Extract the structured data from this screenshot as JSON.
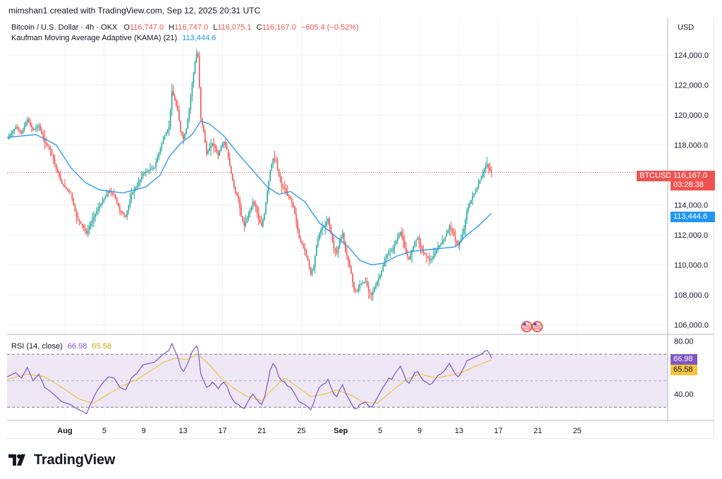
{
  "header": {
    "attribution": "mimshan1 created with TradingView.com, Sep 12, 2025 20:31 UTC"
  },
  "legend": {
    "symbol": "Bitcoin / U.S. Dollar · 4h · OKX",
    "ohlc": {
      "o_label": "O",
      "o": "116,747.0",
      "h_label": "H",
      "h": "116,747.0",
      "l_label": "L",
      "l": "116,075.1",
      "c_label": "C",
      "c": "116,167.0",
      "change": "−605.4 (−0.52%)"
    },
    "kama_label": "Kaufman Moving Average Adaptive (KAMA) (21)",
    "kama_value": "113,444.6",
    "rsi_label": "RSI (14, close)",
    "rsi_value": "66.98",
    "rsi_ma_value": "65.58"
  },
  "price_axis": {
    "currency": "USD"
  },
  "tags": {
    "symbol": "BTCUSD",
    "price": "116,167.0",
    "countdown": "03:28:38",
    "kama": "113,444.6",
    "rsi": "66.98",
    "rsi_ma": "65.58"
  },
  "brand": {
    "name": "TradingView"
  },
  "colors": {
    "up": "#26a69a",
    "down": "#ef5350",
    "kama": "#2196f3",
    "rsi": "#7e57c2",
    "rsi_ma": "#f5c542",
    "rsi_band": "#ede7f6"
  },
  "chart_data": {
    "type": "candlestick",
    "title": "Bitcoin / U.S. Dollar · 4h · OKX",
    "x_tick_labels": [
      "Aug",
      "5",
      "9",
      "13",
      "17",
      "21",
      "25",
      "Sep",
      "5",
      "9",
      "13",
      "17",
      "21",
      "25"
    ],
    "y_tick_labels": [
      "124,000.0",
      "122,000.0",
      "120,000.0",
      "118,000.0",
      "116,000.0",
      "114,000.0",
      "112,000.0",
      "110,000.0",
      "108,000.0",
      "106,000.0"
    ],
    "y_ticks": [
      124000,
      122000,
      120000,
      118000,
      116000,
      114000,
      112000,
      110000,
      108000,
      106000
    ],
    "ylim": [
      105500,
      126500
    ],
    "last_price": 116167.0,
    "price_path": [
      [
        0,
        118400
      ],
      [
        6,
        119200
      ],
      [
        10,
        118800
      ],
      [
        14,
        119700
      ],
      [
        18,
        119000
      ],
      [
        22,
        119300
      ],
      [
        26,
        118200
      ],
      [
        30,
        117700
      ],
      [
        34,
        116400
      ],
      [
        38,
        115400
      ],
      [
        44,
        114800
      ],
      [
        48,
        113200
      ],
      [
        52,
        112600
      ],
      [
        55,
        112100
      ],
      [
        58,
        112800
      ],
      [
        62,
        113600
      ],
      [
        66,
        114200
      ],
      [
        70,
        114900
      ],
      [
        74,
        114700
      ],
      [
        78,
        113600
      ],
      [
        82,
        113200
      ],
      [
        86,
        114700
      ],
      [
        90,
        115300
      ],
      [
        94,
        116100
      ],
      [
        98,
        116300
      ],
      [
        102,
        116500
      ],
      [
        106,
        117800
      ],
      [
        108,
        118400
      ],
      [
        112,
        119200
      ],
      [
        114,
        121600
      ],
      [
        118,
        120300
      ],
      [
        120,
        118900
      ],
      [
        122,
        118400
      ],
      [
        124,
        119100
      ],
      [
        126,
        120400
      ],
      [
        128,
        122100
      ],
      [
        130,
        123500
      ],
      [
        131,
        124100
      ],
      [
        132,
        123900
      ],
      [
        134,
        119800
      ],
      [
        136,
        118900
      ],
      [
        138,
        117400
      ],
      [
        140,
        117800
      ],
      [
        142,
        118100
      ],
      [
        144,
        117800
      ],
      [
        146,
        117300
      ],
      [
        148,
        117900
      ],
      [
        150,
        118200
      ],
      [
        152,
        117700
      ],
      [
        154,
        116600
      ],
      [
        156,
        115600
      ],
      [
        158,
        114800
      ],
      [
        160,
        114400
      ],
      [
        162,
        113200
      ],
      [
        164,
        112600
      ],
      [
        166,
        113100
      ],
      [
        168,
        113700
      ],
      [
        170,
        114200
      ],
      [
        172,
        113900
      ],
      [
        174,
        113000
      ],
      [
        176,
        112600
      ],
      [
        178,
        113400
      ],
      [
        180,
        114900
      ],
      [
        182,
        116300
      ],
      [
        184,
        117100
      ],
      [
        186,
        116900
      ],
      [
        188,
        115900
      ],
      [
        190,
        115200
      ],
      [
        192,
        115100
      ],
      [
        194,
        114600
      ],
      [
        196,
        114400
      ],
      [
        198,
        113900
      ],
      [
        200,
        112900
      ],
      [
        202,
        111800
      ],
      [
        204,
        111400
      ],
      [
        206,
        110900
      ],
      [
        208,
        110300
      ],
      [
        210,
        109400
      ],
      [
        212,
        109900
      ],
      [
        214,
        111300
      ],
      [
        216,
        112100
      ],
      [
        218,
        112500
      ],
      [
        220,
        112600
      ],
      [
        222,
        113100
      ],
      [
        224,
        112100
      ],
      [
        226,
        111100
      ],
      [
        228,
        110800
      ],
      [
        230,
        111600
      ],
      [
        232,
        112100
      ],
      [
        234,
        110900
      ],
      [
        236,
        110300
      ],
      [
        238,
        109400
      ],
      [
        240,
        108300
      ],
      [
        242,
        108200
      ],
      [
        244,
        108700
      ],
      [
        246,
        108800
      ],
      [
        248,
        108900
      ],
      [
        250,
        108300
      ],
      [
        252,
        108000
      ],
      [
        254,
        108400
      ],
      [
        256,
        108900
      ],
      [
        258,
        109300
      ],
      [
        260,
        109900
      ],
      [
        262,
        110400
      ],
      [
        264,
        110900
      ],
      [
        266,
        110900
      ],
      [
        268,
        111400
      ],
      [
        270,
        111800
      ],
      [
        272,
        112200
      ],
      [
        274,
        111600
      ],
      [
        276,
        110700
      ],
      [
        278,
        110400
      ],
      [
        280,
        110900
      ],
      [
        282,
        111600
      ],
      [
        284,
        111800
      ],
      [
        286,
        111200
      ],
      [
        288,
        110800
      ],
      [
        290,
        110600
      ],
      [
        292,
        110300
      ],
      [
        294,
        110400
      ],
      [
        296,
        110800
      ],
      [
        298,
        111200
      ],
      [
        300,
        111400
      ],
      [
        302,
        111700
      ],
      [
        304,
        112100
      ],
      [
        306,
        112600
      ],
      [
        308,
        112200
      ],
      [
        310,
        111600
      ],
      [
        312,
        111300
      ],
      [
        314,
        111700
      ],
      [
        316,
        112400
      ],
      [
        318,
        113600
      ],
      [
        320,
        114100
      ],
      [
        322,
        114600
      ],
      [
        324,
        114900
      ],
      [
        326,
        115400
      ],
      [
        328,
        115900
      ],
      [
        330,
        116400
      ],
      [
        332,
        116700
      ],
      [
        334,
        116300
      ],
      [
        335,
        116167
      ]
    ],
    "kama_path": [
      [
        0,
        118500
      ],
      [
        20,
        118700
      ],
      [
        34,
        118000
      ],
      [
        44,
        116500
      ],
      [
        54,
        115500
      ],
      [
        64,
        115000
      ],
      [
        80,
        114800
      ],
      [
        96,
        115200
      ],
      [
        106,
        116000
      ],
      [
        112,
        117200
      ],
      [
        120,
        118100
      ],
      [
        128,
        118700
      ],
      [
        134,
        119600
      ],
      [
        140,
        119400
      ],
      [
        150,
        118600
      ],
      [
        160,
        117400
      ],
      [
        170,
        116300
      ],
      [
        180,
        115200
      ],
      [
        188,
        114700
      ],
      [
        196,
        114900
      ],
      [
        206,
        114200
      ],
      [
        216,
        112800
      ],
      [
        226,
        112000
      ],
      [
        236,
        111200
      ],
      [
        244,
        110300
      ],
      [
        252,
        110000
      ],
      [
        260,
        110100
      ],
      [
        270,
        110600
      ],
      [
        280,
        110900
      ],
      [
        290,
        111000
      ],
      [
        300,
        111100
      ],
      [
        310,
        111200
      ],
      [
        318,
        112000
      ],
      [
        326,
        112600
      ],
      [
        335,
        113444.6
      ]
    ],
    "rsi": {
      "ylim": [
        20,
        85
      ],
      "y_tick_labels": [
        "80.00",
        "40.00"
      ],
      "y_ticks": [
        80,
        40
      ],
      "upper_band": 70,
      "lower_band": 30,
      "mid_line": 50,
      "rsi_path": [
        [
          0,
          53
        ],
        [
          6,
          56
        ],
        [
          10,
          52
        ],
        [
          14,
          60
        ],
        [
          18,
          50
        ],
        [
          22,
          55
        ],
        [
          26,
          45
        ],
        [
          30,
          42
        ],
        [
          34,
          38
        ],
        [
          38,
          34
        ],
        [
          44,
          32
        ],
        [
          48,
          29
        ],
        [
          52,
          27
        ],
        [
          55,
          25
        ],
        [
          58,
          33
        ],
        [
          62,
          42
        ],
        [
          66,
          48
        ],
        [
          70,
          53
        ],
        [
          74,
          52
        ],
        [
          78,
          45
        ],
        [
          82,
          43
        ],
        [
          86,
          52
        ],
        [
          90,
          56
        ],
        [
          94,
          62
        ],
        [
          98,
          63
        ],
        [
          102,
          64
        ],
        [
          106,
          68
        ],
        [
          108,
          70
        ],
        [
          112,
          73
        ],
        [
          114,
          78
        ],
        [
          118,
          68
        ],
        [
          120,
          60
        ],
        [
          122,
          57
        ],
        [
          124,
          61
        ],
        [
          126,
          66
        ],
        [
          128,
          72
        ],
        [
          130,
          75
        ],
        [
          131,
          76
        ],
        [
          132,
          74
        ],
        [
          134,
          55
        ],
        [
          136,
          50
        ],
        [
          138,
          45
        ],
        [
          140,
          46
        ],
        [
          142,
          49
        ],
        [
          144,
          47
        ],
        [
          146,
          44
        ],
        [
          148,
          47
        ],
        [
          150,
          49
        ],
        [
          152,
          46
        ],
        [
          154,
          40
        ],
        [
          156,
          36
        ],
        [
          158,
          33
        ],
        [
          160,
          32
        ],
        [
          162,
          30
        ],
        [
          164,
          29
        ],
        [
          166,
          33
        ],
        [
          168,
          37
        ],
        [
          170,
          40
        ],
        [
          172,
          37
        ],
        [
          174,
          34
        ],
        [
          176,
          32
        ],
        [
          178,
          37
        ],
        [
          180,
          47
        ],
        [
          182,
          58
        ],
        [
          184,
          63
        ],
        [
          186,
          60
        ],
        [
          188,
          53
        ],
        [
          190,
          50
        ],
        [
          192,
          49
        ],
        [
          194,
          46
        ],
        [
          196,
          45
        ],
        [
          198,
          42
        ],
        [
          200,
          38
        ],
        [
          202,
          34
        ],
        [
          204,
          33
        ],
        [
          206,
          32
        ],
        [
          208,
          30
        ],
        [
          210,
          28
        ],
        [
          212,
          33
        ],
        [
          214,
          40
        ],
        [
          216,
          45
        ],
        [
          218,
          47
        ],
        [
          220,
          48
        ],
        [
          222,
          51
        ],
        [
          224,
          45
        ],
        [
          226,
          40
        ],
        [
          228,
          38
        ],
        [
          230,
          43
        ],
        [
          232,
          47
        ],
        [
          234,
          41
        ],
        [
          236,
          37
        ],
        [
          238,
          33
        ],
        [
          240,
          29
        ],
        [
          242,
          29
        ],
        [
          244,
          32
        ],
        [
          246,
          33
        ],
        [
          248,
          34
        ],
        [
          250,
          31
        ],
        [
          252,
          30
        ],
        [
          254,
          33
        ],
        [
          256,
          37
        ],
        [
          258,
          41
        ],
        [
          260,
          45
        ],
        [
          262,
          48
        ],
        [
          264,
          52
        ],
        [
          266,
          51
        ],
        [
          268,
          55
        ],
        [
          270,
          58
        ],
        [
          272,
          61
        ],
        [
          274,
          56
        ],
        [
          276,
          50
        ],
        [
          278,
          48
        ],
        [
          280,
          52
        ],
        [
          282,
          56
        ],
        [
          284,
          57
        ],
        [
          286,
          53
        ],
        [
          288,
          50
        ],
        [
          290,
          49
        ],
        [
          292,
          47
        ],
        [
          294,
          48
        ],
        [
          296,
          51
        ],
        [
          298,
          54
        ],
        [
          300,
          55
        ],
        [
          302,
          57
        ],
        [
          304,
          60
        ],
        [
          306,
          63
        ],
        [
          308,
          59
        ],
        [
          310,
          55
        ],
        [
          312,
          53
        ],
        [
          314,
          56
        ],
        [
          316,
          60
        ],
        [
          318,
          65
        ],
        [
          320,
          66
        ],
        [
          322,
          67
        ],
        [
          324,
          68
        ],
        [
          326,
          69
        ],
        [
          328,
          70
        ],
        [
          330,
          72
        ],
        [
          332,
          73
        ],
        [
          334,
          70
        ],
        [
          335,
          66.98
        ]
      ],
      "rsi_ma_path": [
        [
          0,
          51
        ],
        [
          14,
          55
        ],
        [
          26,
          53
        ],
        [
          38,
          45
        ],
        [
          50,
          36
        ],
        [
          60,
          33
        ],
        [
          70,
          40
        ],
        [
          80,
          46
        ],
        [
          90,
          51
        ],
        [
          100,
          58
        ],
        [
          108,
          64
        ],
        [
          116,
          67
        ],
        [
          124,
          66
        ],
        [
          132,
          70
        ],
        [
          140,
          62
        ],
        [
          148,
          52
        ],
        [
          156,
          45
        ],
        [
          166,
          38
        ],
        [
          176,
          35
        ],
        [
          184,
          44
        ],
        [
          192,
          52
        ],
        [
          200,
          46
        ],
        [
          210,
          38
        ],
        [
          220,
          40
        ],
        [
          228,
          43
        ],
        [
          238,
          39
        ],
        [
          246,
          34
        ],
        [
          256,
          33
        ],
        [
          266,
          42
        ],
        [
          276,
          51
        ],
        [
          286,
          55
        ],
        [
          296,
          52
        ],
        [
          306,
          54
        ],
        [
          316,
          57
        ],
        [
          326,
          62
        ],
        [
          335,
          65.58
        ]
      ]
    }
  }
}
